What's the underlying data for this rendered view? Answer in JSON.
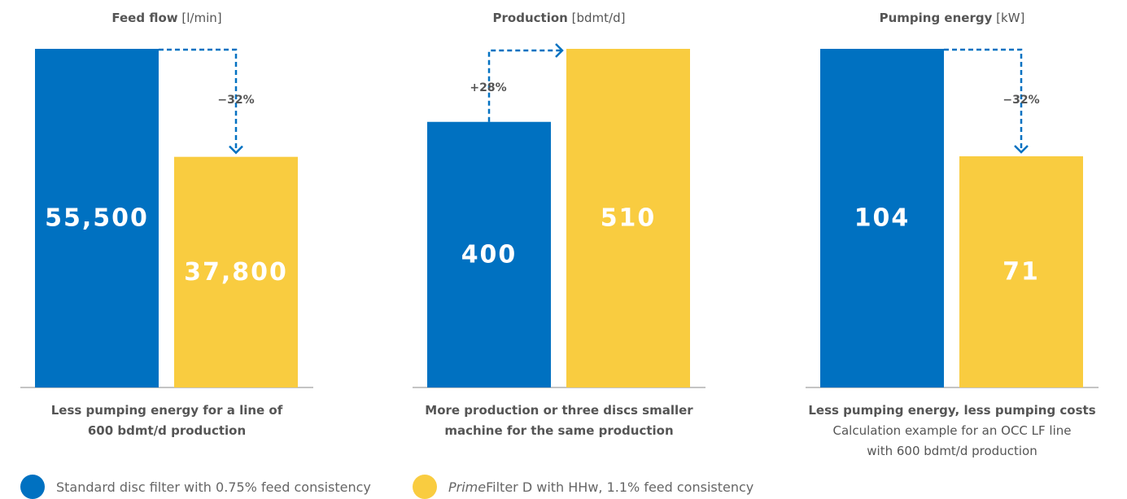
{
  "colors": {
    "standard": "#0071c1",
    "prime": "#f9cc40",
    "axis": "#888888",
    "arrow": "#0071c1",
    "value_text": "#ffffff"
  },
  "legend": {
    "standard": "Standard disc filter with 0.75% feed consistency",
    "prime_italic": "Prime",
    "prime_rest": "Filter D with HHw, 1.1% feed consistency"
  },
  "chart_data": [
    {
      "type": "bar",
      "title": "Feed flow",
      "unit": "[l/min]",
      "series": [
        {
          "name": "Standard disc filter with 0.75% feed consistency",
          "values": [
            55500
          ],
          "label": "55,500"
        },
        {
          "name": "PrimeFilter D with HHw, 1.1% feed consistency",
          "values": [
            37800
          ],
          "label": "37,800"
        }
      ],
      "change_label": "−32%",
      "direction": "down",
      "caption_bold": [
        "Less pumping energy for a line of",
        "600 bdmt/d production"
      ],
      "caption_plain": []
    },
    {
      "type": "bar",
      "title": "Production",
      "unit": "[bdmt/d]",
      "series": [
        {
          "name": "Standard disc filter with 0.75% feed consistency",
          "values": [
            400
          ],
          "label": "400"
        },
        {
          "name": "PrimeFilter D with HHw, 1.1% feed consistency",
          "values": [
            510
          ],
          "label": "510"
        }
      ],
      "change_label": "+28%",
      "direction": "up",
      "caption_bold": [
        "More production or three discs smaller",
        "machine for the same production"
      ],
      "caption_plain": []
    },
    {
      "type": "bar",
      "title": "Pumping energy",
      "unit": "[kW]",
      "series": [
        {
          "name": "Standard disc filter with 0.75% feed consistency",
          "values": [
            104
          ],
          "label": "104"
        },
        {
          "name": "PrimeFilter D with HHw, 1.1% feed consistency",
          "values": [
            71
          ],
          "label": "71"
        }
      ],
      "change_label": "−32%",
      "direction": "down",
      "caption_bold": [
        "Less pumping energy, less pumping costs"
      ],
      "caption_plain": [
        "Calculation example for an OCC LF line",
        "with 600 bdmt/d production"
      ]
    }
  ]
}
